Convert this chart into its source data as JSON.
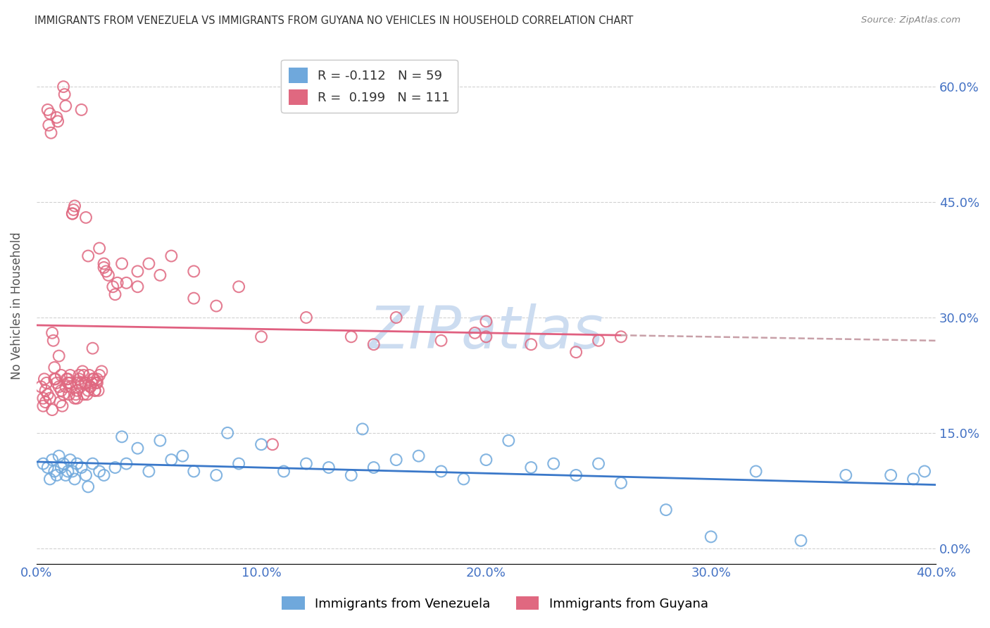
{
  "title": "IMMIGRANTS FROM VENEZUELA VS IMMIGRANTS FROM GUYANA NO VEHICLES IN HOUSEHOLD CORRELATION CHART",
  "source": "Source: ZipAtlas.com",
  "ylabel": "No Vehicles in Household",
  "ytick_values": [
    0.0,
    15.0,
    30.0,
    45.0,
    60.0
  ],
  "xtick_values": [
    0.0,
    10.0,
    20.0,
    30.0,
    40.0
  ],
  "xlim": [
    0.0,
    40.0
  ],
  "ylim": [
    -2.0,
    65.0
  ],
  "legend_r_venezuela": "R = -0.112",
  "legend_n_venezuela": "N = 59",
  "legend_r_guyana": "R =  0.199",
  "legend_n_guyana": "N = 111",
  "color_venezuela": "#6fa8dc",
  "color_guyana": "#e06880",
  "color_venezuela_line": "#3a78c9",
  "color_guyana_line": "#e06080",
  "color_trendline_ext": "#c8a0a8",
  "watermark": "ZIPatlas",
  "watermark_color": "#ccdcf0",
  "venezuela_x": [
    0.3,
    0.5,
    0.6,
    0.7,
    0.8,
    0.9,
    1.0,
    1.1,
    1.2,
    1.3,
    1.4,
    1.5,
    1.6,
    1.7,
    1.8,
    2.0,
    2.2,
    2.5,
    2.8,
    3.0,
    3.5,
    4.0,
    5.0,
    6.0,
    7.0,
    8.0,
    9.0,
    10.0,
    11.0,
    12.0,
    13.0,
    14.0,
    15.0,
    16.0,
    17.0,
    18.0,
    19.0,
    20.0,
    21.0,
    22.0,
    23.0,
    24.0,
    25.0,
    26.0,
    28.0,
    30.0,
    32.0,
    34.0,
    36.0,
    38.0,
    39.0,
    39.5,
    14.5,
    8.5,
    3.8,
    4.5,
    5.5,
    6.5,
    2.3
  ],
  "venezuela_y": [
    11.0,
    10.5,
    9.0,
    11.5,
    10.0,
    9.5,
    12.0,
    10.5,
    11.0,
    9.5,
    10.0,
    11.5,
    10.0,
    9.0,
    11.0,
    10.5,
    9.5,
    11.0,
    10.0,
    9.5,
    10.5,
    11.0,
    10.0,
    11.5,
    10.0,
    9.5,
    11.0,
    13.5,
    10.0,
    11.0,
    10.5,
    9.5,
    10.5,
    11.5,
    12.0,
    10.0,
    9.0,
    11.5,
    14.0,
    10.5,
    11.0,
    9.5,
    11.0,
    8.5,
    5.0,
    1.5,
    10.0,
    1.0,
    9.5,
    9.5,
    9.0,
    10.0,
    15.5,
    15.0,
    14.5,
    13.0,
    14.0,
    12.0,
    8.0
  ],
  "guyana_x": [
    0.2,
    0.3,
    0.35,
    0.4,
    0.45,
    0.5,
    0.55,
    0.6,
    0.65,
    0.7,
    0.75,
    0.8,
    0.85,
    0.9,
    0.95,
    1.0,
    1.05,
    1.1,
    1.15,
    1.2,
    1.25,
    1.3,
    1.35,
    1.4,
    1.45,
    1.5,
    1.55,
    1.6,
    1.65,
    1.7,
    1.75,
    1.8,
    1.85,
    1.9,
    1.95,
    2.0,
    2.05,
    2.1,
    2.15,
    2.2,
    2.25,
    2.3,
    2.35,
    2.4,
    2.45,
    2.5,
    2.55,
    2.6,
    2.65,
    2.7,
    2.75,
    2.8,
    2.9,
    3.0,
    3.1,
    3.2,
    3.4,
    3.6,
    3.8,
    4.0,
    4.5,
    5.0,
    5.5,
    6.0,
    7.0,
    8.0,
    9.0,
    10.0,
    12.0,
    14.0,
    16.0,
    18.0,
    20.0,
    22.0,
    24.0,
    26.0,
    0.3,
    0.4,
    0.5,
    0.6,
    0.7,
    0.8,
    0.9,
    1.0,
    1.1,
    1.2,
    1.3,
    1.4,
    1.5,
    1.6,
    1.7,
    1.8,
    1.9,
    2.0,
    2.1,
    2.2,
    2.3,
    2.4,
    2.5,
    2.6,
    2.7,
    2.8,
    3.0,
    3.5,
    4.5,
    7.0,
    20.0,
    25.0,
    15.0,
    10.5,
    19.5
  ],
  "guyana_y": [
    21.0,
    19.5,
    22.0,
    20.5,
    21.5,
    57.0,
    55.0,
    56.5,
    54.0,
    28.0,
    27.0,
    23.5,
    22.0,
    56.0,
    55.5,
    25.0,
    19.0,
    20.5,
    18.5,
    60.0,
    59.0,
    57.5,
    22.0,
    21.5,
    20.0,
    22.5,
    21.0,
    43.5,
    44.0,
    44.5,
    20.0,
    19.5,
    21.5,
    22.5,
    21.0,
    57.0,
    23.0,
    22.5,
    21.5,
    43.0,
    20.0,
    38.0,
    22.5,
    21.0,
    21.5,
    26.0,
    22.0,
    20.5,
    21.5,
    22.0,
    20.5,
    39.0,
    23.0,
    37.0,
    36.0,
    35.5,
    34.0,
    34.5,
    37.0,
    34.5,
    36.0,
    37.0,
    35.5,
    38.0,
    36.0,
    31.5,
    34.0,
    27.5,
    30.0,
    27.5,
    30.0,
    27.0,
    29.5,
    26.5,
    25.5,
    27.5,
    18.5,
    19.0,
    20.0,
    19.5,
    18.0,
    22.0,
    21.5,
    21.0,
    22.5,
    20.0,
    21.0,
    22.0,
    21.5,
    43.5,
    19.5,
    20.5,
    22.0,
    21.5,
    20.0,
    21.5,
    20.5,
    21.0,
    22.0,
    20.5,
    21.5,
    22.5,
    36.5,
    33.0,
    34.0,
    32.5,
    27.5,
    27.0,
    26.5,
    13.5,
    28.0
  ]
}
